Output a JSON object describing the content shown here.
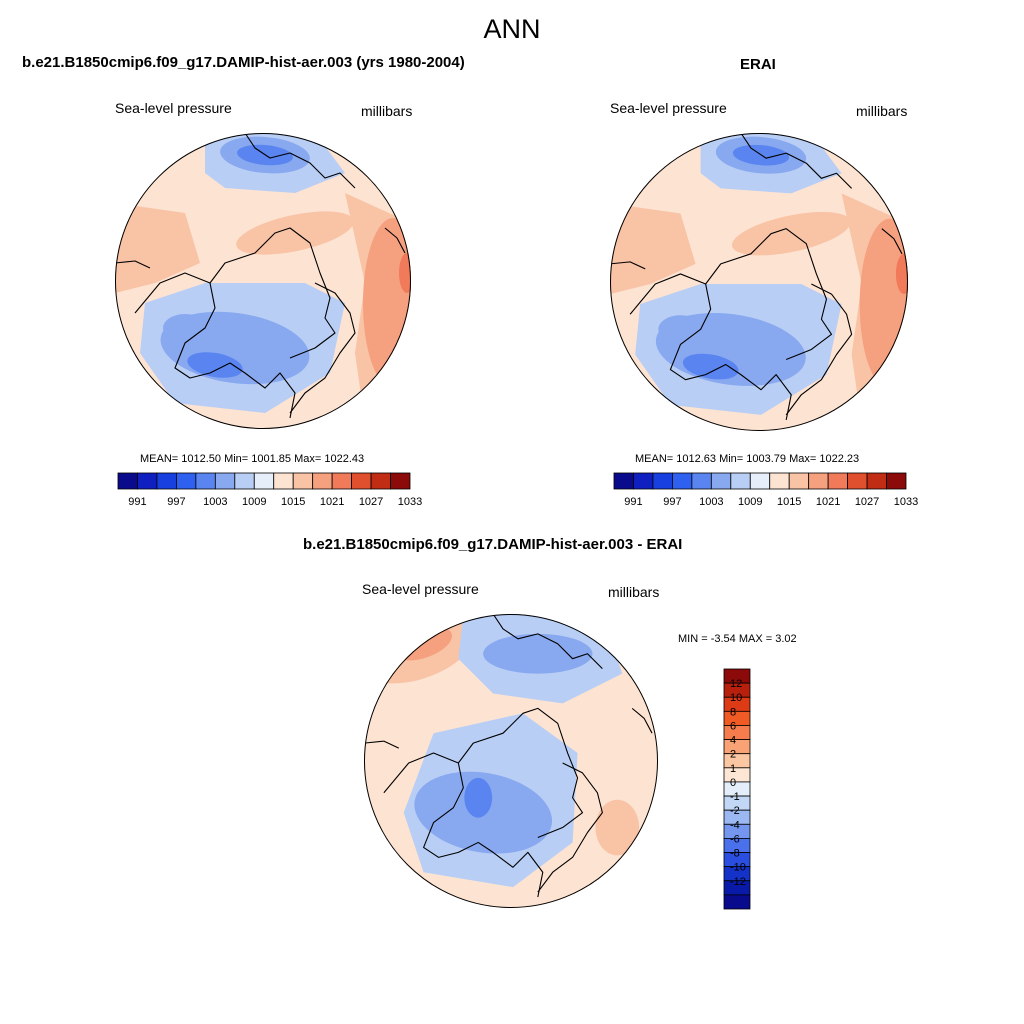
{
  "title": "ANN",
  "panels": [
    {
      "title": "b.e21.B1850cmip6.f09_g17.DAMIP-hist-aer.003 (yrs 1980-2004)",
      "left_label": "Sea-level pressure",
      "right_label": "millibars",
      "stats": "MEAN= 1012.50  Min= 1001.85  Max= 1022.43"
    },
    {
      "title": "ERAI",
      "left_label": "Sea-level pressure",
      "right_label": "millibars",
      "stats": "MEAN= 1012.63  Min= 1003.79  Max= 1022.23"
    },
    {
      "title": "b.e21.B1850cmip6.f09_g17.DAMIP-hist-aer.003 - ERAI",
      "left_label": "Sea-level pressure",
      "right_label": "millibars",
      "stats": "MIN =  -3.54 MAX =   3.02"
    }
  ],
  "colorbar_top": {
    "colors": [
      "#0a0a8c",
      "#1020c0",
      "#1840e0",
      "#3060f0",
      "#5a85f0",
      "#88a8f0",
      "#b8cef5",
      "#e6eefa",
      "#fde3d2",
      "#f9c3a6",
      "#f5a07e",
      "#f07a5a",
      "#e0502e",
      "#c02c14",
      "#8c0a0a"
    ],
    "tick_labels": [
      "991",
      "997",
      "1003",
      "1009",
      "1015",
      "1021",
      "1027",
      "1033"
    ]
  },
  "colorbar_diff": {
    "colors": [
      "#8c0a0a",
      "#b8200e",
      "#dd3a16",
      "#f05a24",
      "#f57c4c",
      "#f8a276",
      "#fbc6a2",
      "#fde6d4",
      "#e4eefb",
      "#c2d6f6",
      "#9cb8f2",
      "#7496ef",
      "#4a70ec",
      "#2a4fe0",
      "#1532c8",
      "#0a1aa8",
      "#0a0a8c"
    ],
    "tick_labels": [
      "12",
      "10",
      "8",
      "6",
      "4",
      "2",
      "1",
      "0",
      "-1",
      "-2",
      "-4",
      "-6",
      "-8",
      "-10",
      "-12"
    ]
  },
  "palette": {
    "deep_blue": "#5a85f0",
    "mid_blue": "#88a8f0",
    "light_blue": "#b8cef5",
    "pale_blue": "#e6eefa",
    "pale_red": "#fde3d2",
    "light_red": "#f9c3a6",
    "mid_red": "#f5a07e",
    "red": "#f07a5a"
  }
}
